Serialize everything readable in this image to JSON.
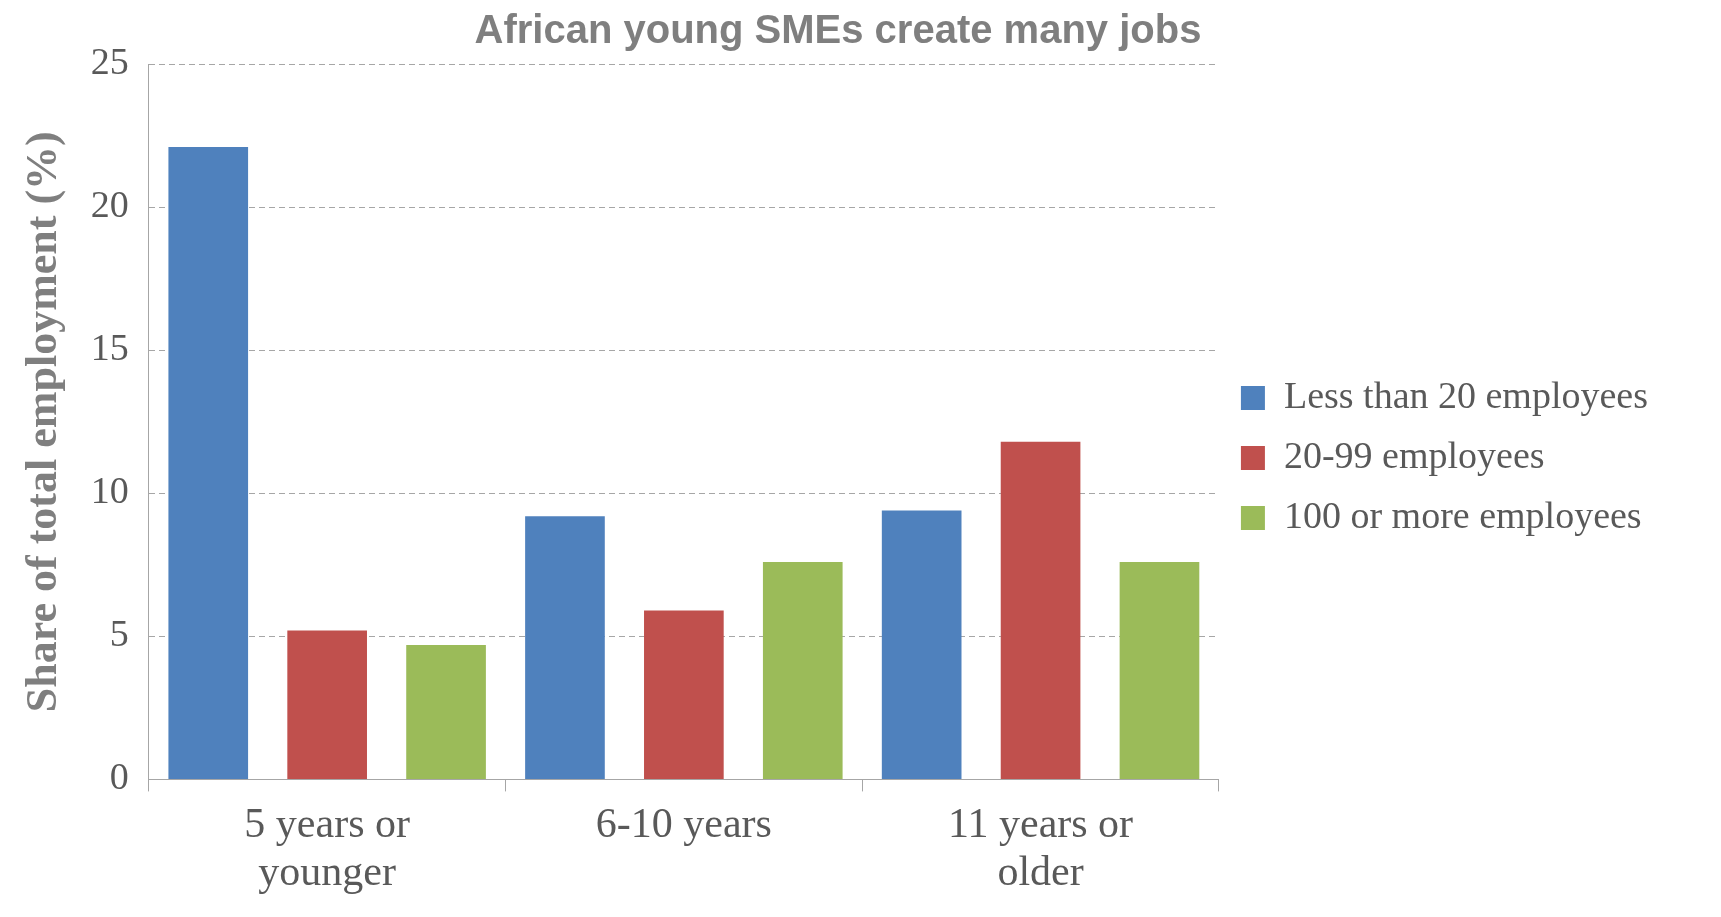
{
  "chart_data": {
    "type": "bar",
    "title": "African young SMEs create many jobs",
    "ylabel": "Share of total employment (%)",
    "categories": [
      "5 years or younger",
      "6-10 years",
      "11 years or older"
    ],
    "series": [
      {
        "name": "Less than 20 employees",
        "color": "#4f81bd",
        "values": [
          22.1,
          9.2,
          9.4
        ]
      },
      {
        "name": "20-99 employees",
        "color": "#c0504d",
        "values": [
          5.2,
          5.9,
          11.8
        ]
      },
      {
        "name": "100 or more employees",
        "color": "#9bbb59",
        "values": [
          4.7,
          7.6,
          7.6
        ]
      }
    ],
    "ylim": [
      0,
      25
    ],
    "yticks": [
      0,
      5,
      10,
      15,
      20,
      25
    ],
    "grid": "y",
    "legend": "right"
  }
}
